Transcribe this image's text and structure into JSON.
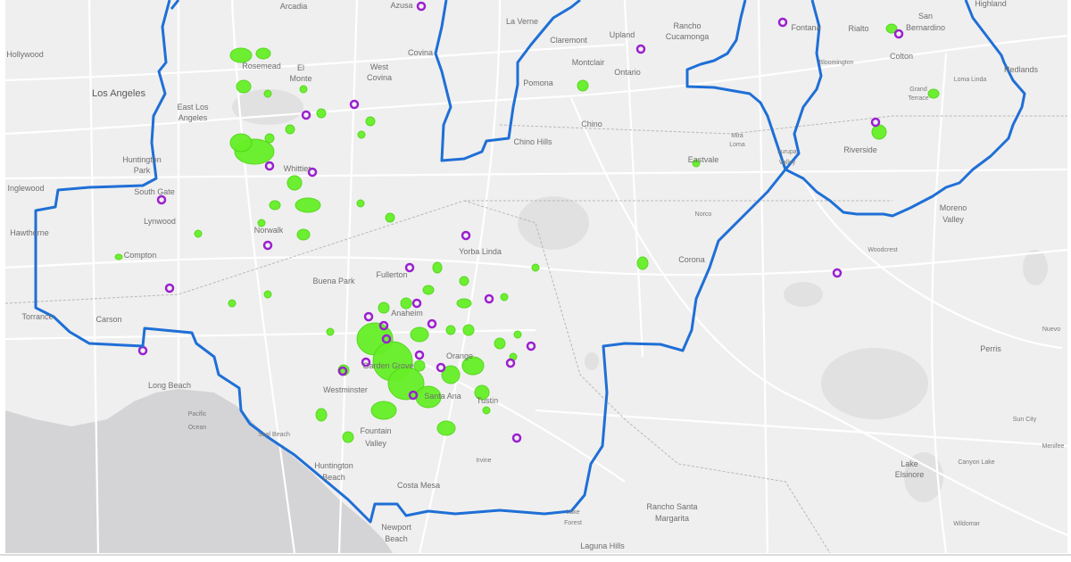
{
  "map": {
    "colors": {
      "land": "#efefef",
      "water": "#d4d4d6",
      "roads": "#ffffff",
      "boundary": "#1f6fd6",
      "green_areas": "#66f026",
      "purple_sites": "#9b1fd1"
    },
    "places": [
      "Arcadia",
      "Azusa",
      "La Verne",
      "Hollywood",
      "Los Angeles",
      "East Los",
      "Angeles",
      "Rosemead",
      "El",
      "Monte",
      "West",
      "Covina",
      "Covina",
      "Claremont",
      "Upland",
      "Rancho",
      "Cucamonga",
      "Montclair",
      "Ontario",
      "Pomona",
      "Chino",
      "Chino Hills",
      "Fontana",
      "Rialto",
      "San",
      "Bernardino",
      "Highland",
      "Colton",
      "Bloomington",
      "Loma Linda",
      "Redlands",
      "Grand",
      "Terrace",
      "Riverside",
      "Mira",
      "Loma",
      "Eastvale",
      "Jurupa",
      "Valley",
      "Norco",
      "Corona",
      "Moreno",
      "Valley",
      "Woodcrest",
      "Huntington",
      "Park",
      "South Gate",
      "Lynwood",
      "Inglewood",
      "Hawthorne",
      "Compton",
      "Norwalk",
      "Whittier",
      "Yorba Linda",
      "Fullerton",
      "Buena Park",
      "Anaheim",
      "Torrance",
      "Carson",
      "Long Beach",
      "Pacific",
      "Ocean",
      "Seal Beach",
      "Garden Grove",
      "Westminster",
      "Orange",
      "Santa Ana",
      "Tustin",
      "Fountain",
      "Valley",
      "Irvine",
      "Huntington",
      "Beach",
      "Costa Mesa",
      "Newport",
      "Beach",
      "Lake",
      "Forest",
      "Rancho Santa",
      "Margarita",
      "Laguna Hills",
      "Perris",
      "Lake",
      "Elsinore",
      "Canyon Lake",
      "Sun City",
      "Wildomar",
      "Menifee",
      "Nuevo"
    ]
  }
}
